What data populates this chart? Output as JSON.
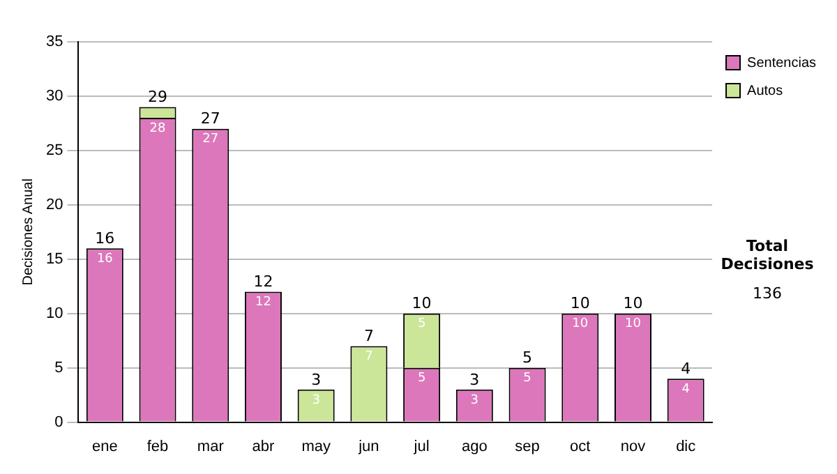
{
  "chart_data": {
    "type": "bar",
    "stacked": true,
    "ylabel": "Decisiones Anual",
    "categories": [
      "ene",
      "feb",
      "mar",
      "abr",
      "may",
      "jun",
      "jul",
      "ago",
      "sep",
      "oct",
      "nov",
      "dic"
    ],
    "series": [
      {
        "name": "Sentencias",
        "color": "#dd77bb",
        "values": [
          16,
          28,
          27,
          12,
          0,
          0,
          5,
          3,
          5,
          10,
          10,
          4
        ],
        "value_labels": [
          "16",
          "28",
          "27",
          "12",
          null,
          null,
          "5",
          "3",
          "5",
          "10",
          "10",
          "4"
        ]
      },
      {
        "name": "Autos",
        "color": "#cce699",
        "values": [
          0,
          1,
          0,
          0,
          3,
          7,
          5,
          0,
          0,
          0,
          0,
          0
        ],
        "value_labels": [
          null,
          null,
          null,
          null,
          "3",
          "7",
          "5",
          null,
          null,
          null,
          null,
          null
        ]
      }
    ],
    "totals": [
      "16",
      "29",
      "27",
      "12",
      "3",
      "7",
      "10",
      "3",
      "5",
      "10",
      "10",
      "4"
    ],
    "ylim": [
      0,
      35
    ],
    "yticks": [
      0,
      5,
      10,
      15,
      20,
      25,
      30,
      35
    ],
    "grid": "y",
    "legend": "right",
    "annotations": [
      "Total Decisiones",
      "136"
    ]
  }
}
